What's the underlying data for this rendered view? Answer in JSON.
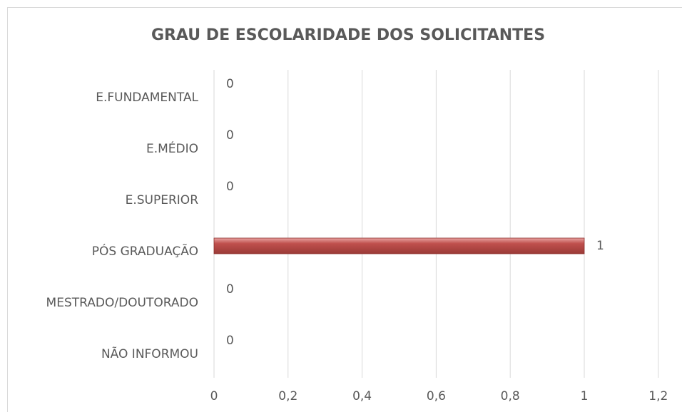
{
  "chart_data": {
    "type": "bar",
    "orientation": "horizontal",
    "title": "GRAU DE ESCOLARIDADE DOS SOLICITANTES",
    "categories": [
      "E.FUNDAMENTAL",
      "E.MÉDIO",
      "E.SUPERIOR",
      "PÓS GRADUAÇÃO",
      "MESTRADO/DOUTORADO",
      "NÃO INFORMOU"
    ],
    "values": [
      0,
      0,
      0,
      1,
      0,
      0
    ],
    "color": "#c0504d",
    "xlim": [
      0,
      1.2
    ],
    "xticks": [
      0,
      {
        "value": 0.2,
        "label": "0,2"
      },
      {
        "value": 0.4,
        "label": "0,4"
      },
      {
        "value": 0.6,
        "label": "0,6"
      },
      {
        "value": 0.8,
        "label": "0,8"
      },
      1,
      {
        "value": 1.2,
        "label": "1,2"
      }
    ],
    "grid": true
  }
}
